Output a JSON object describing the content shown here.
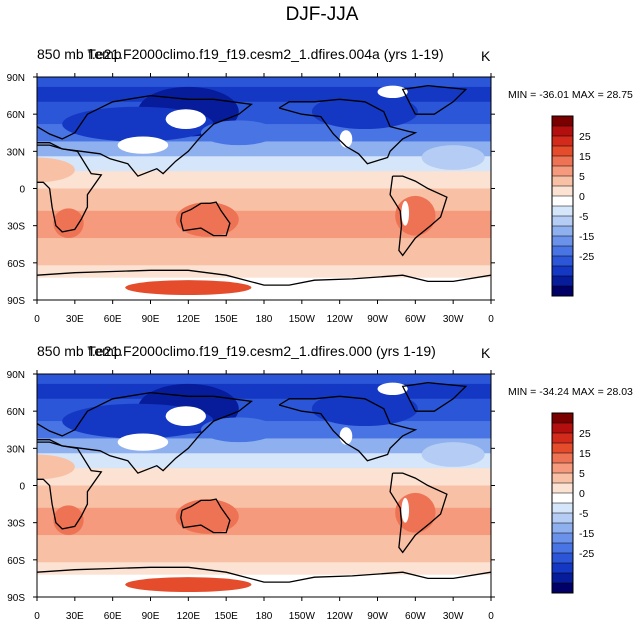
{
  "figure": {
    "title": "DJF-JJA"
  },
  "panels": [
    {
      "variable": "850 mb Temp",
      "case_title": "f.e21.F2000climo.f19_f19.cesm2_1.dfires.004a (yrs 1-19)",
      "units": "K",
      "stats": "MIN = -36.01 MAX =  28.75"
    },
    {
      "variable": "850 mb Temp",
      "case_title": "f.e21.F2000climo.f19_f19.cesm2_1.dfires.000 (yrs 1-19)",
      "units": "K",
      "stats": "MIN = -34.24 MAX =  28.03"
    }
  ],
  "chart_data": [
    {
      "type": "heatmap",
      "title": "DJF-JJA",
      "subtitle": "850 mb Temp f.e21.F2000climo.f19_f19.cesm2_1.dfires.004a (yrs 1-19)",
      "units": "K",
      "min": -36.01,
      "max": 28.75,
      "x_ticks": [
        "0",
        "30E",
        "60E",
        "90E",
        "120E",
        "150E",
        "180",
        "150W",
        "120W",
        "90W",
        "60W",
        "30W",
        "0"
      ],
      "y_ticks": [
        "90N",
        "60N",
        "30N",
        "0",
        "30S",
        "60S",
        "90S"
      ],
      "xlim": [
        0,
        360
      ],
      "ylim": [
        -90,
        90
      ],
      "colorbar_labels": [
        "25",
        "15",
        "5",
        "0",
        "-5",
        "-15",
        "-25"
      ]
    },
    {
      "type": "heatmap",
      "title": "DJF-JJA",
      "subtitle": "850 mb Temp f.e21.F2000climo.f19_f19.cesm2_1.dfires.000 (yrs 1-19)",
      "units": "K",
      "min": -34.24,
      "max": 28.03,
      "x_ticks": [
        "0",
        "30E",
        "60E",
        "90E",
        "120E",
        "150E",
        "180",
        "150W",
        "120W",
        "90W",
        "60W",
        "30W",
        "0"
      ],
      "y_ticks": [
        "90N",
        "60N",
        "30N",
        "0",
        "30S",
        "60S",
        "90S"
      ],
      "xlim": [
        0,
        360
      ],
      "ylim": [
        -90,
        90
      ],
      "colorbar_labels": [
        "25",
        "15",
        "5",
        "0",
        "-5",
        "-15",
        "-25"
      ]
    }
  ],
  "colorbar": {
    "colors": [
      "#7a0000",
      "#b30f0f",
      "#d22b1c",
      "#e44c2c",
      "#ee7354",
      "#f59a7c",
      "#f8c0a5",
      "#fbe2d2",
      "#ffffff",
      "#d6e6fa",
      "#b5cdf4",
      "#8fb0ef",
      "#6a92ea",
      "#4874e4",
      "#2b56d8",
      "#1437c4",
      "#061c9a",
      "#000066"
    ]
  }
}
